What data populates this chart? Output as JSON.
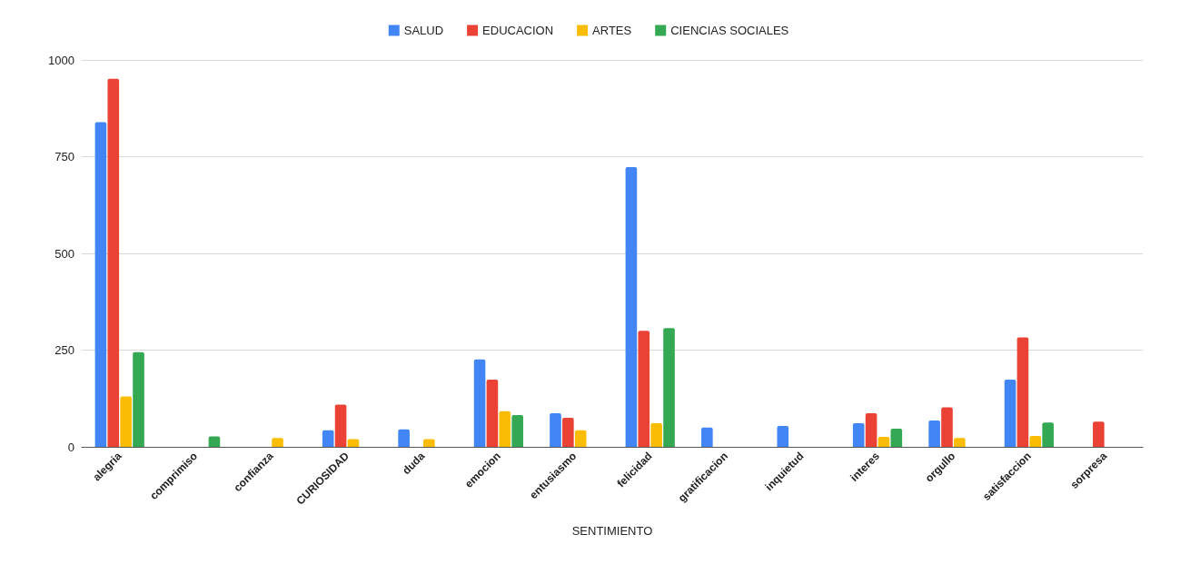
{
  "chart_data": {
    "type": "bar",
    "xlabel": "SENTIMIENTO",
    "categories": [
      "alegria",
      "comprimiso",
      "confianza",
      "CURIOSIDAD",
      "duda",
      "emocion",
      "entusiasmo",
      "felicidad",
      "gratificacion",
      "inquietud",
      "interes",
      "orgullo",
      "satisfaccion",
      "sorpresa"
    ],
    "series": [
      {
        "name": "SALUD",
        "color": "#4285f4",
        "values": [
          839,
          null,
          null,
          43,
          45,
          226,
          87,
          723,
          50,
          54,
          61,
          68,
          174,
          null
        ]
      },
      {
        "name": "EDUCACION",
        "color": "#ea4335",
        "values": [
          951,
          null,
          null,
          109,
          null,
          174,
          75,
          300,
          null,
          null,
          87,
          102,
          283,
          65
        ]
      },
      {
        "name": "ARTES",
        "color": "#fbbc04",
        "values": [
          130,
          null,
          23,
          20,
          20,
          92,
          43,
          61,
          null,
          null,
          26,
          23,
          28,
          null
        ]
      },
      {
        "name": "CIENCIAS SOCIALES",
        "color": "#34a853",
        "values": [
          245,
          27,
          null,
          null,
          null,
          82,
          null,
          307,
          null,
          null,
          47,
          null,
          63,
          null
        ]
      }
    ],
    "ylim": [
      0,
      1000
    ],
    "yticks": [
      0,
      250,
      500,
      750,
      1000
    ],
    "grid": "y",
    "legend": "top"
  }
}
